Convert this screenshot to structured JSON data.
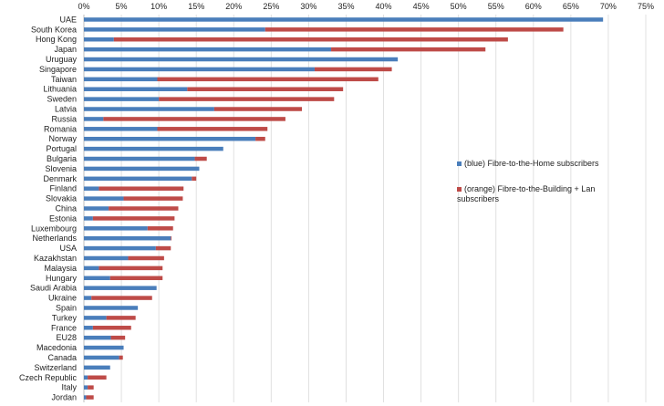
{
  "chart_data": {
    "type": "bar",
    "orientation": "horizontal",
    "stacked": true,
    "xlim": [
      0,
      75
    ],
    "x_ticks": [
      "0%",
      "5%",
      "10%",
      "15%",
      "20%",
      "25%",
      "30%",
      "35%",
      "40%",
      "45%",
      "50%",
      "55%",
      "60%",
      "65%",
      "70%",
      "75%"
    ],
    "grid": true,
    "legend_position": "right",
    "categories": [
      "UAE",
      "South Korea",
      "Hong Kong",
      "Japan",
      "Uruguay",
      "Singapore",
      "Taiwan",
      "Lithuania",
      "Sweden",
      "Latvia",
      "Russia",
      "Romania",
      "Norway",
      "Portugal",
      "Bulgaria",
      "Slovenia",
      "Denmark",
      "Finland",
      "Slovakia",
      "China",
      "Estonia",
      "Luxembourg",
      "Netherlands",
      "USA",
      "Kazakhstan",
      "Malaysia",
      "Hungary",
      "Saudi Arabia",
      "Ukraine",
      "Spain",
      "Turkey",
      "France",
      "EU28",
      "Macedonia",
      "Canada",
      "Switzerland",
      "Czech Republic",
      "Italy",
      "Jordan"
    ],
    "series": [
      {
        "name": "(blue) Fibre-to-the-Home subscribers",
        "color": "#4a7ebb",
        "values": [
          69.3,
          24.2,
          4.0,
          33.0,
          41.9,
          30.8,
          9.8,
          13.8,
          10.0,
          17.4,
          2.6,
          9.8,
          22.9,
          18.6,
          14.8,
          15.4,
          14.4,
          2.0,
          5.3,
          3.3,
          1.2,
          8.5,
          11.6,
          9.6,
          5.9,
          2.0,
          3.5,
          9.7,
          1.0,
          7.2,
          3.0,
          1.2,
          3.6,
          5.3,
          4.7,
          3.5,
          0.5,
          0.5,
          0.3
        ]
      },
      {
        "name": "(orange) Fibre-to-the-Building + Lan subscribers",
        "color": "#be4b48",
        "values": [
          0,
          39.8,
          52.6,
          20.6,
          0,
          10.3,
          29.5,
          20.8,
          23.4,
          11.7,
          24.3,
          14.7,
          1.3,
          0,
          1.6,
          0,
          0.6,
          11.3,
          7.9,
          9.3,
          10.9,
          3.4,
          0.1,
          2.0,
          4.8,
          8.5,
          7.0,
          0,
          8.1,
          0,
          3.9,
          5.1,
          1.9,
          0,
          0.5,
          0,
          2.5,
          0.8,
          1.0
        ]
      }
    ]
  }
}
